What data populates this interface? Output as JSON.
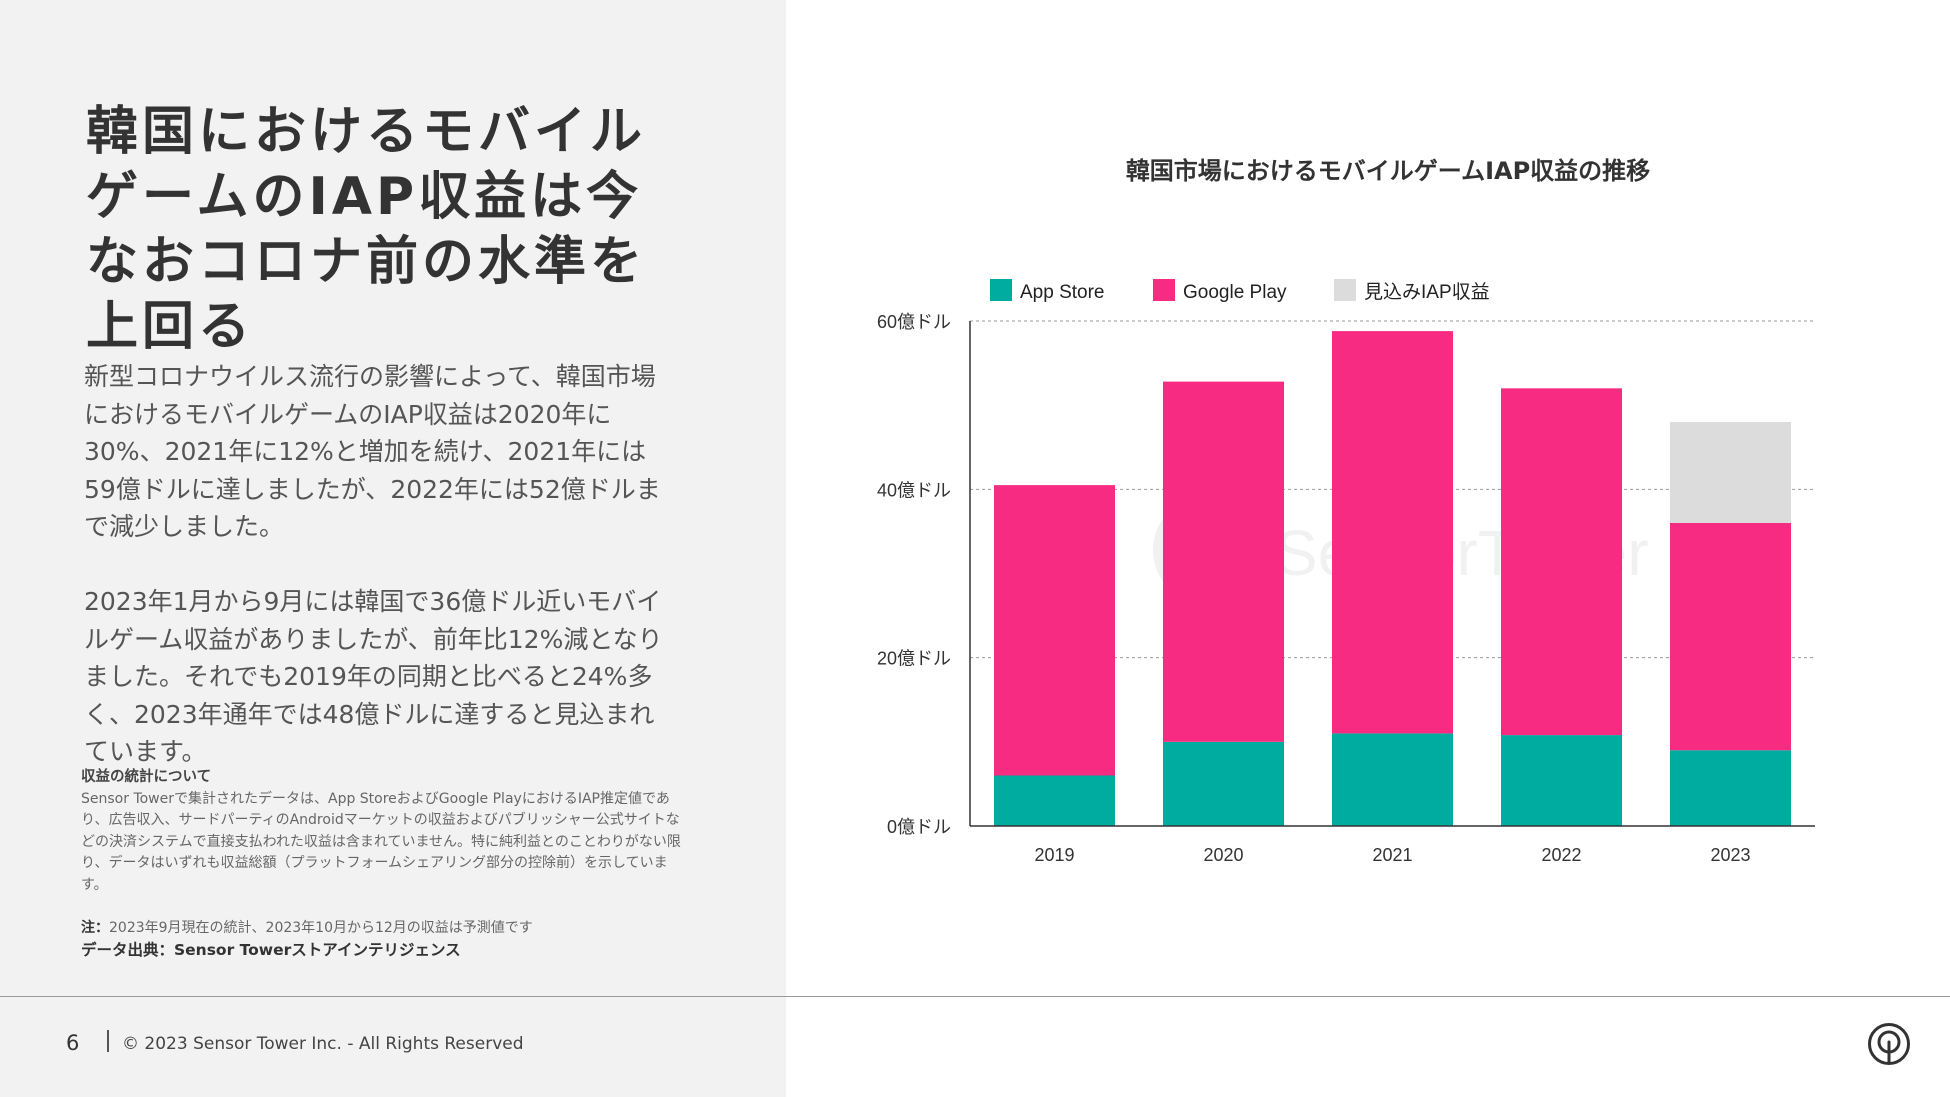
{
  "left": {
    "headline": "韓国におけるモバイルゲームのIAP収益は今なおコロナ前の水準を上回る",
    "paragraph1": "新型コロナウイルス流行の影響によって、韓国市場におけるモバイルゲームのIAP収益は2020年に30%、2021年に12%と増加を続け、2021年には59億ドルに達しましたが、2022年には52億ドルまで減少しました。",
    "paragraph2": "2023年1月から9月には韓国で36億ドル近いモバイルゲーム収益がありましたが、前年比12%減となりました。それでも2019年の同期と比べると24%多く、2023年通年では48億ドルに達すると見込まれています。",
    "notes_heading": "収益の統計について",
    "notes_body": "Sensor Towerで集計されたデータは、App StoreおよびGoogle PlayにおけるIAP推定値であり、広告収入、サードパーティのAndroidマーケットの収益およびパブリッシャー公式サイトなどの決済システムで直接支払われた収益は含まれていません。特に純利益とのことわりがない限り、データはいずれも収益総額（プラットフォームシェアリング部分の控除前）を示しています。",
    "note_label": "注：",
    "note_text": "2023年9月現在の統計、2023年10月から12月の収益は予測値です",
    "source": "データ出典：Sensor Towerストアインテリジェンス"
  },
  "footer": {
    "page_number": "6",
    "copyright": "© 2023 Sensor Tower Inc. - All Rights Reserved"
  },
  "watermark": "SensorTower",
  "colors": {
    "app_store": "#00ab9f",
    "google_play": "#f72b82",
    "forecast": "#dcdcdc"
  },
  "chart_data": {
    "type": "bar",
    "stacked": true,
    "title": "韓国市場におけるモバイルゲームIAP収益の推移",
    "categories": [
      "2019",
      "2020",
      "2021",
      "2022",
      "2023"
    ],
    "series": [
      {
        "name": "App Store",
        "values": [
          0.6,
          1.0,
          1.1,
          1.08,
          0.9
        ]
      },
      {
        "name": "Google Play",
        "values": [
          3.45,
          4.28,
          4.78,
          4.12,
          2.7
        ]
      },
      {
        "name": "見込みIAP収益",
        "values": [
          0,
          0,
          0,
          0,
          1.2
        ]
      }
    ],
    "yticks": [
      0,
      2,
      4,
      6
    ],
    "ytick_labels": [
      "0億ドル",
      "20億ドル",
      "40億ドル",
      "60億ドル"
    ],
    "ylim": [
      0,
      6
    ],
    "grid": "dashed horizontal",
    "legend_position": "top-left",
    "xlabel": "",
    "ylabel": ""
  }
}
